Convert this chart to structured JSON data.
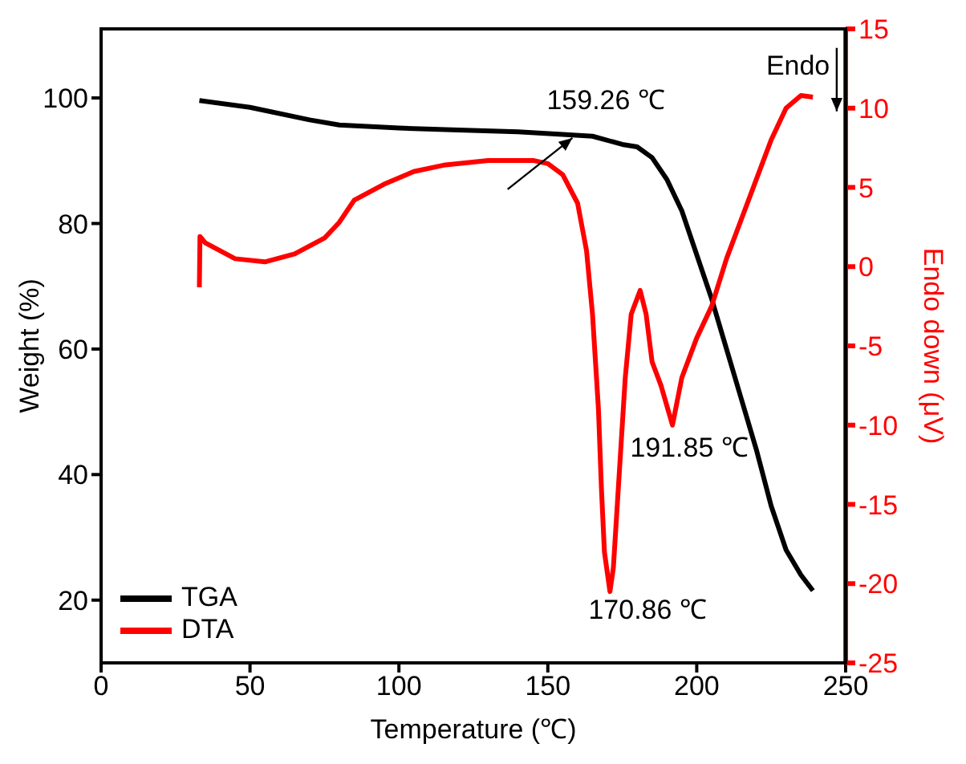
{
  "chart_data": {
    "type": "line",
    "xlabel": "Temperature (℃)",
    "ylabel": "Weight (%)",
    "y2label": "Endo down (μV)",
    "xlim": [
      0,
      250
    ],
    "xticks": [
      0,
      50,
      100,
      150,
      200,
      250
    ],
    "ylim": [
      10,
      111
    ],
    "yticks": [
      20,
      40,
      60,
      80,
      100
    ],
    "y2lim": [
      -25,
      15
    ],
    "y2ticks": [
      -25,
      -20,
      -15,
      -10,
      -5,
      0,
      5,
      10,
      15
    ],
    "legend": "bottom left",
    "grid": false,
    "marker": "none",
    "line_style": "solid",
    "series": [
      {
        "name": "TGA",
        "color": "#000000",
        "x": [
          33,
          50,
          70,
          80,
          100,
          120,
          140,
          155,
          165,
          175,
          180,
          185,
          190,
          195,
          200,
          205,
          210,
          215,
          220,
          225,
          230,
          235,
          239
        ],
        "values": [
          99.6,
          98.5,
          96.5,
          95.7,
          95.2,
          94.9,
          94.6,
          94.2,
          93.9,
          92.6,
          92.2,
          90.5,
          87,
          82,
          75,
          68,
          60,
          52,
          44,
          35,
          28,
          24,
          21.5
        ]
      },
      {
        "name": "DTA",
        "color": "#ff0000",
        "axis": "y2",
        "x": [
          33,
          33.2,
          35,
          45,
          55,
          65,
          75,
          80,
          85,
          95,
          105,
          115,
          130,
          145,
          150,
          155,
          160,
          163,
          165,
          167,
          168,
          169,
          170.86,
          172,
          174,
          176,
          178,
          181,
          183,
          185,
          188,
          191.85,
          195,
          200,
          205,
          210,
          215,
          220,
          225,
          230,
          235,
          239
        ],
        "values": [
          -1.3,
          1.9,
          1.5,
          0.5,
          0.3,
          0.8,
          1.8,
          2.8,
          4.2,
          5.2,
          6.0,
          6.4,
          6.7,
          6.7,
          6.5,
          5.8,
          4,
          1,
          -3,
          -9,
          -14,
          -18,
          -20.5,
          -19,
          -13,
          -7,
          -3,
          -1.5,
          -3,
          -6,
          -7.5,
          -10,
          -7,
          -4.5,
          -2.5,
          0.5,
          3,
          5.5,
          8,
          10,
          10.8,
          10.7
        ]
      }
    ],
    "annotations": [
      "159.26 ℃",
      "191.85 ℃",
      "170.86 ℃",
      "Endo"
    ]
  }
}
